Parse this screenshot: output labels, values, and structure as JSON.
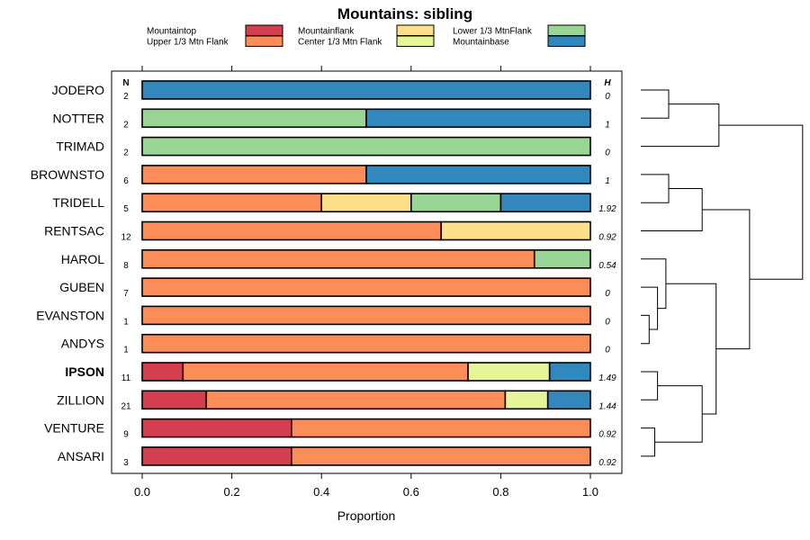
{
  "chart_data": {
    "type": "bar",
    "orientation": "horizontal",
    "stacked": true,
    "title": "Mountains: sibling",
    "xlabel": "Proportion",
    "xlim": [
      0,
      1
    ],
    "xticks": [
      "0.0",
      "0.2",
      "0.4",
      "0.6",
      "0.8",
      "1.0"
    ],
    "xtick_values": [
      0,
      0.2,
      0.4,
      0.6,
      0.8,
      1.0
    ],
    "n_header": "N",
    "h_header": "H",
    "legend_position": "top",
    "categories_order": [
      "Mountaintop",
      "Upper 1/3 Mtn Flank",
      "Mountainflank",
      "Center 1/3 Mtn Flank",
      "Lower 1/3 MtnFlank",
      "Mountainbase"
    ],
    "legend": [
      {
        "label": "Mountaintop",
        "color": "#d53e4f"
      },
      {
        "label": "Upper 1/3 Mtn Flank",
        "color": "#fc8d59"
      },
      {
        "label": "Mountainflank",
        "color": "#fee08b"
      },
      {
        "label": "Center 1/3 Mtn Flank",
        "color": "#e6f598"
      },
      {
        "label": "Lower 1/3 MtnFlank",
        "color": "#99d594"
      },
      {
        "label": "Mountainbase",
        "color": "#3288bd"
      }
    ],
    "rows": [
      {
        "name": "JODERO",
        "n": "2",
        "h": "0",
        "bold": false,
        "values": [
          0,
          0,
          0,
          0,
          0,
          1.0
        ]
      },
      {
        "name": "NOTTER",
        "n": "2",
        "h": "1",
        "bold": false,
        "values": [
          0,
          0,
          0,
          0,
          0.5,
          0.5
        ]
      },
      {
        "name": "TRIMAD",
        "n": "2",
        "h": "0",
        "bold": false,
        "values": [
          0,
          0,
          0,
          0,
          1.0,
          0
        ]
      },
      {
        "name": "BROWNSTO",
        "n": "6",
        "h": "1",
        "bold": false,
        "values": [
          0,
          0.5,
          0,
          0,
          0,
          0.5
        ]
      },
      {
        "name": "TRIDELL",
        "n": "5",
        "h": "1.92",
        "bold": false,
        "values": [
          0,
          0.4,
          0.2,
          0,
          0.2,
          0.2
        ]
      },
      {
        "name": "RENTSAC",
        "n": "12",
        "h": "0.92",
        "bold": false,
        "values": [
          0,
          0.667,
          0.333,
          0,
          0,
          0
        ]
      },
      {
        "name": "HAROL",
        "n": "8",
        "h": "0.54",
        "bold": false,
        "values": [
          0,
          0.875,
          0,
          0,
          0.125,
          0
        ]
      },
      {
        "name": "GUBEN",
        "n": "7",
        "h": "0",
        "bold": false,
        "values": [
          0,
          1.0,
          0,
          0,
          0,
          0
        ]
      },
      {
        "name": "EVANSTON",
        "n": "1",
        "h": "0",
        "bold": false,
        "values": [
          0,
          1.0,
          0,
          0,
          0,
          0
        ]
      },
      {
        "name": "ANDYS",
        "n": "1",
        "h": "0",
        "bold": false,
        "values": [
          0,
          1.0,
          0,
          0,
          0,
          0
        ]
      },
      {
        "name": "IPSON",
        "n": "11",
        "h": "1.49",
        "bold": true,
        "values": [
          0.091,
          0.636,
          0,
          0.182,
          0,
          0.091
        ]
      },
      {
        "name": "ZILLION",
        "n": "21",
        "h": "1.44",
        "bold": false,
        "values": [
          0.143,
          0.667,
          0,
          0.095,
          0,
          0.095
        ]
      },
      {
        "name": "VENTURE",
        "n": "9",
        "h": "0.92",
        "bold": false,
        "values": [
          0.333,
          0.667,
          0,
          0,
          0,
          0
        ]
      },
      {
        "name": "ANSARI",
        "n": "3",
        "h": "0.92",
        "bold": false,
        "values": [
          0.333,
          0.667,
          0,
          0,
          0,
          0
        ]
      }
    ],
    "dendrogram": {
      "description": "hierarchical clustering of rows (right side)",
      "merges": [
        {
          "a": 0,
          "b": 1,
          "height": 0.1
        },
        {
          "a": 2,
          "b": "m0",
          "height": 0.28
        },
        {
          "a": 3,
          "b": 4,
          "height": 0.1
        },
        {
          "a": "m2",
          "b": 5,
          "height": 0.22
        },
        {
          "a": 8,
          "b": 9,
          "height": 0.03
        },
        {
          "a": 7,
          "b": "m4",
          "height": 0.06
        },
        {
          "a": 6,
          "b": "m5",
          "height": 0.09
        },
        {
          "a": 10,
          "b": 11,
          "height": 0.06
        },
        {
          "a": 12,
          "b": 13,
          "height": 0.05
        },
        {
          "a": "m7",
          "b": "m8",
          "height": 0.22
        },
        {
          "a": "m6",
          "b": "m9",
          "height": 0.27
        },
        {
          "a": "m3",
          "b": "m10",
          "height": 0.39
        },
        {
          "a": "m1",
          "b": "m11",
          "height": 0.58
        }
      ]
    }
  }
}
